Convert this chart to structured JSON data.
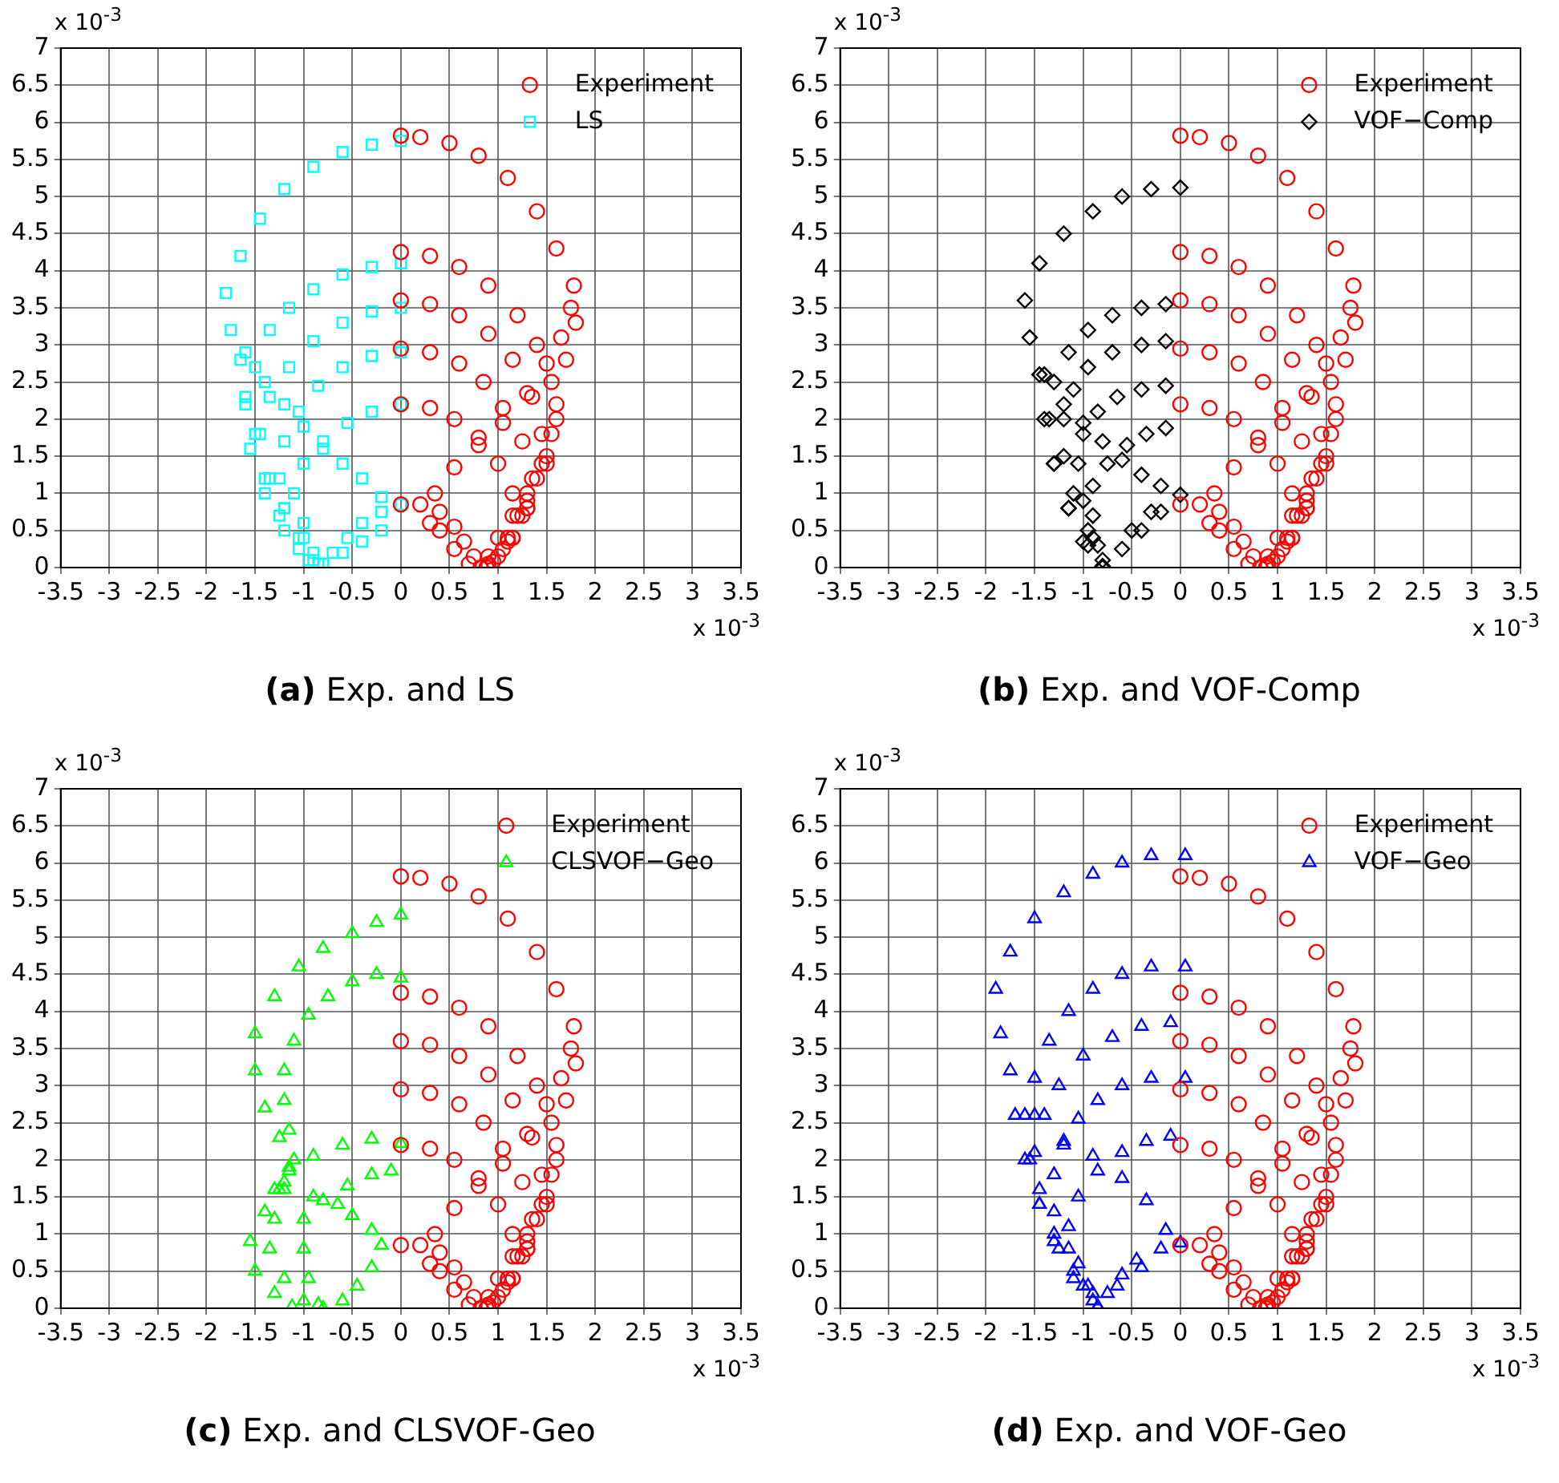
{
  "chart_data": [
    {
      "type": "scatter",
      "title": "(a) Exp. and LS",
      "xlabel": "x 10$^{-3}$",
      "ylabel": "x 10$^{-3}$",
      "xlim": [
        -3.5,
        3.5
      ],
      "ylim": [
        0,
        7
      ],
      "xticks": [
        -3.5,
        -3,
        -2.5,
        -2,
        -1.5,
        -1,
        -0.5,
        0,
        0.5,
        1,
        1.5,
        2,
        2.5,
        3,
        3.5
      ],
      "yticks": [
        0,
        0.5,
        1,
        1.5,
        2,
        2.5,
        3,
        3.5,
        4,
        4.5,
        5,
        5.5,
        6,
        6.5,
        7
      ],
      "grid": true,
      "legend": "top right",
      "series": [
        {
          "name": "Experiment",
          "color": "#ff0000",
          "marker": "circle",
          "x": [
            0,
            0.2,
            0.5,
            0.8,
            1.1,
            1.4,
            1.6,
            1.78,
            1.8,
            1.7,
            1.6,
            1.5,
            1.3,
            1.1,
            0.9,
            0,
            0.3,
            0.6,
            0.9,
            1.2,
            1.4,
            1.55,
            1.6,
            1.5,
            1.3,
            1.1,
            0.9,
            0,
            0.3,
            0.6,
            0.9,
            1.15,
            1.35,
            1.45,
            1.4,
            1.25,
            1.05,
            0.88,
            0,
            0.3,
            0.6,
            0.85,
            1.05,
            1.25,
            1.35,
            1.3,
            1.15,
            0.95,
            0,
            0.3,
            0.55,
            0.8,
            1,
            1.15,
            1.2,
            1.15,
            1,
            0,
            0.2,
            0.4,
            0.55,
            0.65,
            0.75,
            0.82,
            0.3,
            0.35,
            0.55,
            0.8,
            1.05,
            1.3,
            1.5,
            1.65,
            1.75,
            0.4,
            0.55,
            0.7,
            0.9,
            1,
            1.15,
            1.3,
            1.45,
            1.55
          ],
          "values": [
            5.82,
            5.8,
            5.72,
            5.55,
            5.25,
            4.8,
            4.3,
            3.8,
            3.3,
            2.8,
            2.2,
            1.5,
            0.9,
            0.4,
            0.05,
            4.25,
            4.2,
            4.05,
            3.8,
            3.4,
            3,
            2.5,
            2,
            1.4,
            0.8,
            0.35,
            0.02,
            3.6,
            3.55,
            3.4,
            3.15,
            2.8,
            2.3,
            1.8,
            1.2,
            0.7,
            0.25,
            0,
            2.95,
            2.9,
            2.75,
            2.5,
            2.15,
            1.7,
            1.2,
            0.8,
            0.4,
            0.08,
            2.2,
            2.15,
            2,
            1.75,
            1.4,
            1,
            0.7,
            0.4,
            0.15,
            0.85,
            0.85,
            0.75,
            0.55,
            0.35,
            0.15,
            0,
            0.6,
            1,
            1.35,
            1.65,
            1.95,
            2.35,
            2.75,
            3.1,
            3.5,
            0.5,
            0.25,
            0.05,
            0.15,
            0.4,
            0.7,
            1,
            1.4,
            1.8
          ]
        },
        {
          "name": "LS",
          "color": "#00ffff",
          "marker": "square",
          "x": [
            0,
            -0.3,
            -0.6,
            -0.9,
            -1.2,
            -1.45,
            -1.65,
            -1.8,
            -1.75,
            -1.65,
            -1.6,
            -1.5,
            -1.35,
            -1.2,
            -1,
            -0.85,
            0,
            -0.3,
            -0.6,
            -0.9,
            -1.15,
            -1.35,
            -1.5,
            -1.6,
            -1.55,
            -1.4,
            -1.2,
            -0.95,
            0,
            -0.3,
            -0.6,
            -0.9,
            -1.15,
            -1.35,
            -1.45,
            -1.4,
            -1.25,
            -1.05,
            0,
            -0.3,
            -0.6,
            -0.85,
            -1.05,
            -1.2,
            -1.25,
            -1.2,
            -1.05,
            -0.9,
            0,
            -0.3,
            -0.55,
            -0.8,
            -1,
            -1.1,
            -1,
            -0.9,
            -1.6,
            -1.4,
            -1.2,
            -1,
            -0.8,
            -0.6,
            -0.4,
            -0.2,
            0,
            -0.2,
            -0.4,
            -0.55,
            -0.7,
            -0.8,
            -0.6,
            -0.4,
            -0.2
          ],
          "values": [
            5.75,
            5.7,
            5.6,
            5.4,
            5.1,
            4.7,
            4.2,
            3.7,
            3.2,
            2.8,
            2.3,
            1.8,
            1.2,
            0.8,
            0.4,
            0.05,
            4.1,
            4.05,
            3.95,
            3.75,
            3.5,
            3.2,
            2.7,
            2.2,
            1.6,
            1,
            0.5,
            0.1,
            3.5,
            3.45,
            3.3,
            3.05,
            2.7,
            2.3,
            1.8,
            1.2,
            0.7,
            0.25,
            2.9,
            2.85,
            2.7,
            2.45,
            2.1,
            1.7,
            1.2,
            0.8,
            0.4,
            0.1,
            2.2,
            2.1,
            1.95,
            1.7,
            1.4,
            1,
            0.6,
            0.2,
            2.9,
            2.5,
            2.2,
            1.9,
            1.6,
            1.4,
            1.2,
            0.95,
            0.85,
            0.75,
            0.6,
            0.4,
            0.2,
            0.05,
            0.2,
            0.35,
            0.5
          ]
        }
      ]
    },
    {
      "type": "scatter",
      "title": "(b) Exp. and VOF-Comp",
      "xlabel": "x 10$^{-3}$",
      "ylabel": "x 10$^{-3}$",
      "xlim": [
        -3.5,
        3.5
      ],
      "ylim": [
        0,
        7
      ],
      "xticks": [
        -3.5,
        -3,
        -2.5,
        -2,
        -1.5,
        -1,
        -0.5,
        0,
        0.5,
        1,
        1.5,
        2,
        2.5,
        3,
        3.5
      ],
      "yticks": [
        0,
        0.5,
        1,
        1.5,
        2,
        2.5,
        3,
        3.5,
        4,
        4.5,
        5,
        5.5,
        6,
        6.5,
        7
      ],
      "grid": true,
      "legend": "top right",
      "series": [
        {
          "name": "Experiment",
          "color": "#ff0000",
          "marker": "circle",
          "x": [
            0,
            0.2,
            0.5,
            0.8,
            1.1,
            1.4,
            1.6,
            1.78,
            1.8,
            1.7,
            1.6,
            1.5,
            1.3,
            1.1,
            0.9,
            0,
            0.3,
            0.6,
            0.9,
            1.2,
            1.4,
            1.55,
            1.6,
            1.5,
            1.3,
            1.1,
            0.9,
            0,
            0.3,
            0.6,
            0.9,
            1.15,
            1.35,
            1.45,
            1.4,
            1.25,
            1.05,
            0.88,
            0,
            0.3,
            0.6,
            0.85,
            1.05,
            1.25,
            1.35,
            1.3,
            1.15,
            0.95,
            0,
            0.3,
            0.55,
            0.8,
            1,
            1.15,
            1.2,
            1.15,
            1,
            0,
            0.2,
            0.4,
            0.55,
            0.65,
            0.75,
            0.82,
            0.3,
            0.35,
            0.55,
            0.8,
            1.05,
            1.3,
            1.5,
            1.65,
            1.75,
            0.4,
            0.55,
            0.7,
            0.9,
            1,
            1.15,
            1.3,
            1.45,
            1.55
          ],
          "values": [
            5.82,
            5.8,
            5.72,
            5.55,
            5.25,
            4.8,
            4.3,
            3.8,
            3.3,
            2.8,
            2.2,
            1.5,
            0.9,
            0.4,
            0.05,
            4.25,
            4.2,
            4.05,
            3.8,
            3.4,
            3,
            2.5,
            2,
            1.4,
            0.8,
            0.35,
            0.02,
            3.6,
            3.55,
            3.4,
            3.15,
            2.8,
            2.3,
            1.8,
            1.2,
            0.7,
            0.25,
            0,
            2.95,
            2.9,
            2.75,
            2.5,
            2.15,
            1.7,
            1.2,
            0.8,
            0.4,
            0.08,
            2.2,
            2.15,
            2,
            1.75,
            1.4,
            1,
            0.7,
            0.4,
            0.15,
            0.85,
            0.85,
            0.75,
            0.55,
            0.35,
            0.15,
            0,
            0.6,
            1,
            1.35,
            1.65,
            1.95,
            2.35,
            2.75,
            3.1,
            3.5,
            0.5,
            0.25,
            0.05,
            0.15,
            0.4,
            0.7,
            1,
            1.4,
            1.8
          ]
        },
        {
          "name": "VOF−Comp",
          "color": "#000000",
          "marker": "diamond",
          "x": [
            0,
            -0.3,
            -0.6,
            -0.9,
            -1.2,
            -1.45,
            -1.6,
            -1.55,
            -1.45,
            -1.4,
            -1.3,
            -1.15,
            -1,
            -0.8,
            -0.15,
            -0.4,
            -0.7,
            -0.95,
            -1.15,
            -1.3,
            -1.35,
            -1.3,
            -1.15,
            -0.95,
            -0.15,
            -0.4,
            -0.7,
            -0.95,
            -1.1,
            -1.2,
            -1.2,
            -1.1,
            -0.95,
            -0.8,
            -0.15,
            -0.4,
            -0.65,
            -0.85,
            -1,
            -1.05,
            -1,
            -0.9,
            -0.15,
            -0.35,
            -0.55,
            -0.75,
            -0.9,
            -0.9,
            -0.85,
            -1.4,
            -1.2,
            -1,
            -0.8,
            -0.6,
            -0.4,
            -0.2,
            0,
            -0.2,
            -0.4,
            -0.6,
            -0.8,
            -0.5,
            -0.3
          ],
          "values": [
            5.12,
            5.1,
            5,
            4.8,
            4.5,
            4.1,
            3.6,
            3.1,
            2.6,
            2,
            1.4,
            0.8,
            0.35,
            0,
            3.55,
            3.5,
            3.4,
            3.2,
            2.9,
            2.5,
            2,
            1.4,
            0.8,
            0.3,
            3.05,
            3,
            2.9,
            2.7,
            2.4,
            2,
            1.5,
            1,
            0.5,
            0.1,
            2.45,
            2.4,
            2.3,
            2.1,
            1.8,
            1.4,
            0.9,
            0.4,
            1.88,
            1.8,
            1.65,
            1.4,
            1.1,
            0.7,
            0.3,
            2.6,
            2.2,
            1.95,
            1.7,
            1.45,
            1.25,
            1.1,
            0.98,
            0.75,
            0.5,
            0.25,
            0.02,
            0.5,
            0.75
          ]
        }
      ]
    },
    {
      "type": "scatter",
      "title": "(c) Exp. and CLSVOF-Geo",
      "xlabel": "x 10$^{-3}$",
      "ylabel": "x 10$^{-3}$",
      "xlim": [
        -3.5,
        3.5
      ],
      "ylim": [
        0,
        7
      ],
      "xticks": [
        -3.5,
        -3,
        -2.5,
        -2,
        -1.5,
        -1,
        -0.5,
        0,
        0.5,
        1,
        1.5,
        2,
        2.5,
        3,
        3.5
      ],
      "yticks": [
        0,
        0.5,
        1,
        1.5,
        2,
        2.5,
        3,
        3.5,
        4,
        4.5,
        5,
        5.5,
        6,
        6.5,
        7
      ],
      "grid": true,
      "legend": "top right",
      "series": [
        {
          "name": "Experiment",
          "color": "#ff0000",
          "marker": "circle",
          "x": [
            0,
            0.2,
            0.5,
            0.8,
            1.1,
            1.4,
            1.6,
            1.78,
            1.8,
            1.7,
            1.6,
            1.5,
            1.3,
            1.1,
            0.9,
            0,
            0.3,
            0.6,
            0.9,
            1.2,
            1.4,
            1.55,
            1.6,
            1.5,
            1.3,
            1.1,
            0.9,
            0,
            0.3,
            0.6,
            0.9,
            1.15,
            1.35,
            1.45,
            1.4,
            1.25,
            1.05,
            0.88,
            0,
            0.3,
            0.6,
            0.85,
            1.05,
            1.25,
            1.35,
            1.3,
            1.15,
            0.95,
            0,
            0.3,
            0.55,
            0.8,
            1,
            1.15,
            1.2,
            1.15,
            1,
            0,
            0.2,
            0.4,
            0.55,
            0.65,
            0.75,
            0.82,
            0.3,
            0.35,
            0.55,
            0.8,
            1.05,
            1.3,
            1.5,
            1.65,
            1.75,
            0.4,
            0.55,
            0.7,
            0.9,
            1,
            1.15,
            1.3,
            1.45,
            1.55
          ],
          "values": [
            5.82,
            5.8,
            5.72,
            5.55,
            5.25,
            4.8,
            4.3,
            3.8,
            3.3,
            2.8,
            2.2,
            1.5,
            0.9,
            0.4,
            0.05,
            4.25,
            4.2,
            4.05,
            3.8,
            3.4,
            3,
            2.5,
            2,
            1.4,
            0.8,
            0.35,
            0.02,
            3.6,
            3.55,
            3.4,
            3.15,
            2.8,
            2.3,
            1.8,
            1.2,
            0.7,
            0.25,
            0,
            2.95,
            2.9,
            2.75,
            2.5,
            2.15,
            1.7,
            1.2,
            0.8,
            0.4,
            0.08,
            2.2,
            2.15,
            2,
            1.75,
            1.4,
            1,
            0.7,
            0.4,
            0.15,
            0.85,
            0.85,
            0.75,
            0.55,
            0.35,
            0.15,
            0,
            0.6,
            1,
            1.35,
            1.65,
            1.95,
            2.35,
            2.75,
            3.1,
            3.5,
            0.5,
            0.25,
            0.05,
            0.15,
            0.4,
            0.7,
            1,
            1.4,
            1.8
          ]
        },
        {
          "name": "CLSVOF−Geo",
          "color": "#00ff00",
          "marker": "triangle",
          "x": [
            0,
            -0.25,
            -0.5,
            -0.8,
            -1.05,
            -1.3,
            -1.5,
            -1.5,
            -1.4,
            -1.25,
            -1.15,
            -1.25,
            -1.4,
            -1.55,
            -1.5,
            -1.3,
            -1.12,
            0,
            -0.25,
            -0.5,
            -0.75,
            -0.95,
            -1.1,
            -1.2,
            -1.2,
            -1.15,
            -1.1,
            -1.2,
            -1.3,
            -1.35,
            -1.2,
            -1,
            0,
            -0.3,
            -0.6,
            -0.9,
            -1.15,
            -1.3,
            -0.1,
            -0.3,
            -0.55,
            -0.8,
            -1,
            -1,
            -0.95,
            -0.85,
            -1.2,
            -0.9,
            -0.65,
            -0.5,
            -0.3,
            -0.2,
            -0.3,
            -0.45,
            -0.6,
            -0.8
          ],
          "values": [
            5.3,
            5.2,
            5.05,
            4.85,
            4.6,
            4.2,
            3.7,
            3.2,
            2.7,
            2.3,
            1.9,
            1.6,
            1.3,
            0.9,
            0.5,
            0.2,
            0.02,
            4.45,
            4.5,
            4.4,
            4.2,
            3.95,
            3.6,
            3.2,
            2.8,
            2.4,
            2,
            1.6,
            1.2,
            0.8,
            0.4,
            0.1,
            2.22,
            2.28,
            2.2,
            2.05,
            1.85,
            1.6,
            1.85,
            1.8,
            1.65,
            1.45,
            1.2,
            0.8,
            0.4,
            0.05,
            1.7,
            1.5,
            1.4,
            1.25,
            1.05,
            0.85,
            0.55,
            0.3,
            0.1,
            0
          ]
        }
      ]
    },
    {
      "type": "scatter",
      "title": "(d) Exp. and VOF-Geo",
      "xlabel": "x 10$^{-3}$",
      "ylabel": "x 10$^{-3}$",
      "xlim": [
        -3.5,
        3.5
      ],
      "ylim": [
        0,
        7
      ],
      "xticks": [
        -3.5,
        -3,
        -2.5,
        -2,
        -1.5,
        -1,
        -0.5,
        0,
        0.5,
        1,
        1.5,
        2,
        2.5,
        3,
        3.5
      ],
      "yticks": [
        0,
        0.5,
        1,
        1.5,
        2,
        2.5,
        3,
        3.5,
        4,
        4.5,
        5,
        5.5,
        6,
        6.5,
        7
      ],
      "grid": true,
      "legend": "top right",
      "series": [
        {
          "name": "Experiment",
          "color": "#ff0000",
          "marker": "circle",
          "x": [
            0,
            0.2,
            0.5,
            0.8,
            1.1,
            1.4,
            1.6,
            1.78,
            1.8,
            1.7,
            1.6,
            1.5,
            1.3,
            1.1,
            0.9,
            0,
            0.3,
            0.6,
            0.9,
            1.2,
            1.4,
            1.55,
            1.6,
            1.5,
            1.3,
            1.1,
            0.9,
            0,
            0.3,
            0.6,
            0.9,
            1.15,
            1.35,
            1.45,
            1.4,
            1.25,
            1.05,
            0.88,
            0,
            0.3,
            0.6,
            0.85,
            1.05,
            1.25,
            1.35,
            1.3,
            1.15,
            0.95,
            0,
            0.3,
            0.55,
            0.8,
            1,
            1.15,
            1.2,
            1.15,
            1,
            0,
            0.2,
            0.4,
            0.55,
            0.65,
            0.75,
            0.82,
            0.3,
            0.35,
            0.55,
            0.8,
            1.05,
            1.3,
            1.5,
            1.65,
            1.75,
            0.4,
            0.55,
            0.7,
            0.9,
            1,
            1.15,
            1.3,
            1.45,
            1.55
          ],
          "values": [
            5.82,
            5.8,
            5.72,
            5.55,
            5.25,
            4.8,
            4.3,
            3.8,
            3.3,
            2.8,
            2.2,
            1.5,
            0.9,
            0.4,
            0.05,
            4.25,
            4.2,
            4.05,
            3.8,
            3.4,
            3,
            2.5,
            2,
            1.4,
            0.8,
            0.35,
            0.02,
            3.6,
            3.55,
            3.4,
            3.15,
            2.8,
            2.3,
            1.8,
            1.2,
            0.7,
            0.25,
            0,
            2.95,
            2.9,
            2.75,
            2.5,
            2.15,
            1.7,
            1.2,
            0.8,
            0.4,
            0.08,
            2.2,
            2.15,
            2,
            1.75,
            1.4,
            1,
            0.7,
            0.4,
            0.15,
            0.85,
            0.85,
            0.75,
            0.55,
            0.35,
            0.15,
            0,
            0.6,
            1,
            1.35,
            1.65,
            1.95,
            2.35,
            2.75,
            3.1,
            3.5,
            0.5,
            0.25,
            0.05,
            0.15,
            0.4,
            0.7,
            1,
            1.4,
            1.8
          ]
        },
        {
          "name": "VOF−Geo",
          "color": "#0000ff",
          "marker": "triangle",
          "x": [
            0.05,
            -0.3,
            -0.6,
            -0.9,
            -1.2,
            -1.5,
            -1.75,
            -1.9,
            -1.85,
            -1.75,
            -1.7,
            -1.6,
            -1.45,
            -1.3,
            -1.1,
            -0.85,
            0.05,
            -0.3,
            -0.6,
            -0.9,
            -1.15,
            -1.35,
            -1.5,
            -1.6,
            -1.55,
            -1.45,
            -1.25,
            -1,
            -0.1,
            -0.4,
            -0.7,
            -1,
            -1.25,
            -1.4,
            -1.5,
            -1.45,
            -1.3,
            -1.1,
            -0.9,
            0.05,
            -0.3,
            -0.6,
            -0.85,
            -1.05,
            -1.2,
            -1.3,
            -1.3,
            -1.15,
            -0.95,
            -0.1,
            -0.35,
            -0.6,
            -0.85,
            -1.05,
            -1.15,
            -1.05,
            -0.9,
            -1.5,
            -1.2,
            -0.9,
            -0.6,
            -0.35,
            -0.15,
            0,
            -0.2,
            -0.45,
            -0.6,
            -0.75,
            -0.85,
            -0.65,
            -0.4
          ],
          "values": [
            6.1,
            6.1,
            6,
            5.85,
            5.6,
            5.25,
            4.8,
            4.3,
            3.7,
            3.2,
            2.6,
            2,
            1.4,
            0.9,
            0.4,
            0.02,
            4.6,
            4.6,
            4.5,
            4.3,
            4,
            3.6,
            3.1,
            2.6,
            2,
            1.4,
            0.8,
            0.3,
            3.85,
            3.8,
            3.65,
            3.4,
            3,
            2.6,
            2.1,
            1.6,
            1,
            0.5,
            0.1,
            3.1,
            3.1,
            3,
            2.8,
            2.55,
            2.2,
            1.8,
            1.3,
            0.8,
            0.3,
            2.32,
            2.25,
            2.1,
            1.85,
            1.5,
            1.1,
            0.6,
            0.2,
            2.6,
            2.25,
            2.05,
            1.75,
            1.45,
            1.05,
            0.88,
            0.8,
            0.65,
            0.45,
            0.2,
            0.02,
            0.3,
            0.55
          ]
        }
      ]
    }
  ]
}
